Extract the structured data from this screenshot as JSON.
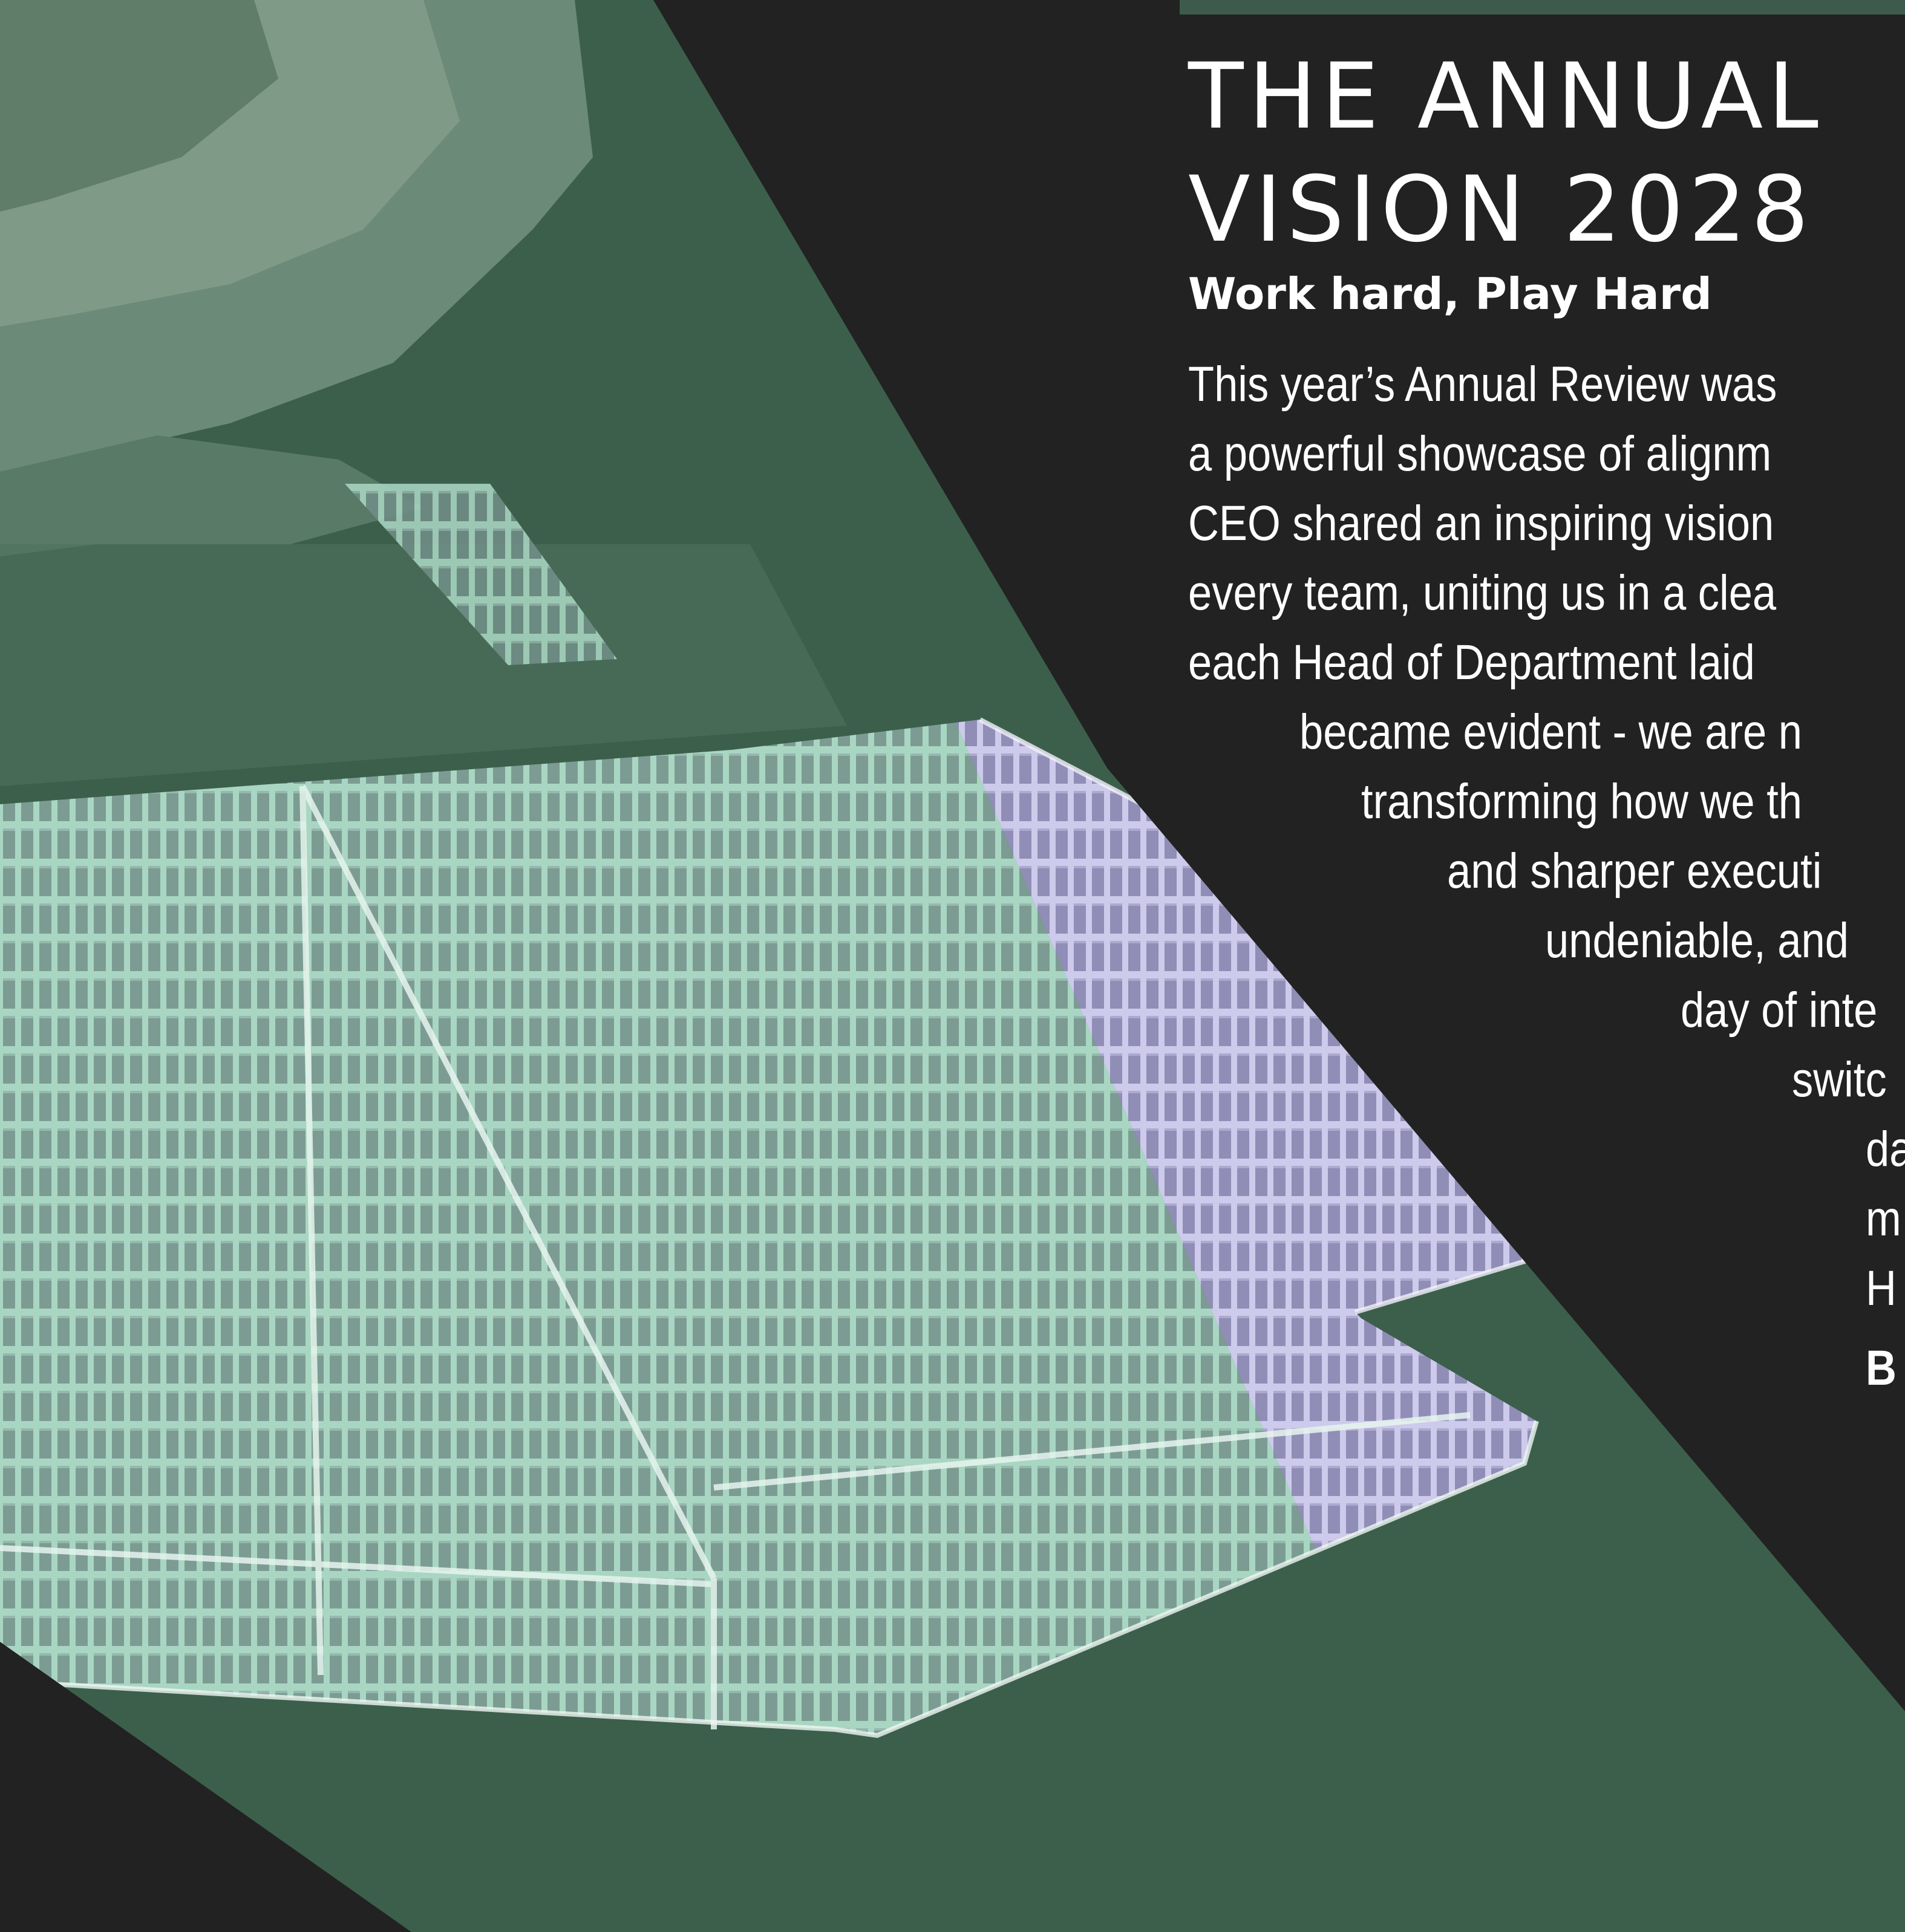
{
  "heading": {
    "line1": "THE ANNUAL",
    "line2": "VISION 2028"
  },
  "tagline": "Work hard, Play Hard",
  "body_lines": [
    "This year’s Annual Review was",
    "a powerful showcase of alignm",
    "CEO shared an inspiring vision",
    "every team, uniting us in a clea",
    "each Head of Department laid",
    "became evident - we are n",
    "transforming how we th",
    "and sharper executi",
    "undeniable, and",
    "day of inte",
    "switc",
    "da",
    "m",
    "H",
    "B"
  ],
  "colors": {
    "background": "#222222",
    "water": "#3b5f4b",
    "panel_tint_green": "#a9d8c2",
    "panel_tint_purple": "#c4c0e6",
    "text": "#ffffff"
  },
  "image": {
    "subject": "floating solar panel arrays on a reservoir",
    "icon": "solar-farm-photo"
  }
}
